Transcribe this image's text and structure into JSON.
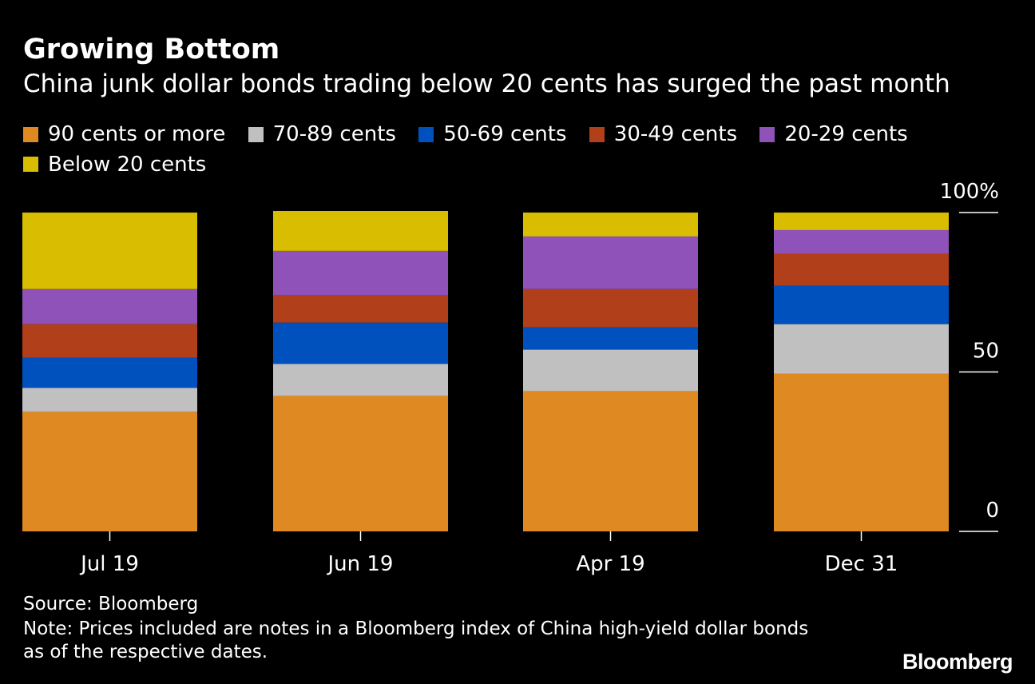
{
  "header": {
    "title": "Growing Bottom",
    "subtitle": "China junk dollar bonds trading below 20 cents has surged the past month"
  },
  "legend": [
    {
      "label": "90 cents or more",
      "color": "#de8922"
    },
    {
      "label": "70-89 cents",
      "color": "#c0c0c0"
    },
    {
      "label": "50-69 cents",
      "color": "#0050bd"
    },
    {
      "label": "30-49 cents",
      "color": "#b03f1a"
    },
    {
      "label": "20-29 cents",
      "color": "#8e52b8"
    },
    {
      "label": "Below 20 cents",
      "color": "#d9bd00"
    }
  ],
  "chart_data": {
    "type": "bar",
    "stacked": true,
    "categories": [
      "Jul 19",
      "Jun 19",
      "Apr 19",
      "Dec 31"
    ],
    "series": [
      {
        "name": "90 cents or more",
        "color": "#de8922",
        "values": [
          37.5,
          42.5,
          44,
          49.5
        ]
      },
      {
        "name": "70-89 cents",
        "color": "#c0c0c0",
        "values": [
          7.5,
          10,
          13,
          15.5
        ]
      },
      {
        "name": "50-69 cents",
        "color": "#0050bd",
        "values": [
          9.5,
          13,
          7,
          12
        ]
      },
      {
        "name": "30-49 cents",
        "color": "#b03f1a",
        "values": [
          10.5,
          8.5,
          12,
          10
        ]
      },
      {
        "name": "20-29 cents",
        "color": "#8e52b8",
        "values": [
          11,
          14,
          16.5,
          7.5
        ]
      },
      {
        "name": "Below 20 cents",
        "color": "#d9bd00",
        "values": [
          24,
          12.5,
          7.5,
          5.5
        ]
      }
    ],
    "ylim": [
      0,
      100
    ],
    "yticks": [
      {
        "value": 0,
        "label": "0"
      },
      {
        "value": 50,
        "label": "50"
      },
      {
        "value": 100,
        "label": "100%"
      }
    ],
    "legend_position": "top-left",
    "grid": false
  },
  "footer": {
    "source": "Source: Bloomberg",
    "note": "Note: Prices included are notes in a Bloomberg index of China high-yield dollar bonds as of the respective dates.",
    "logo": "Bloomberg"
  }
}
